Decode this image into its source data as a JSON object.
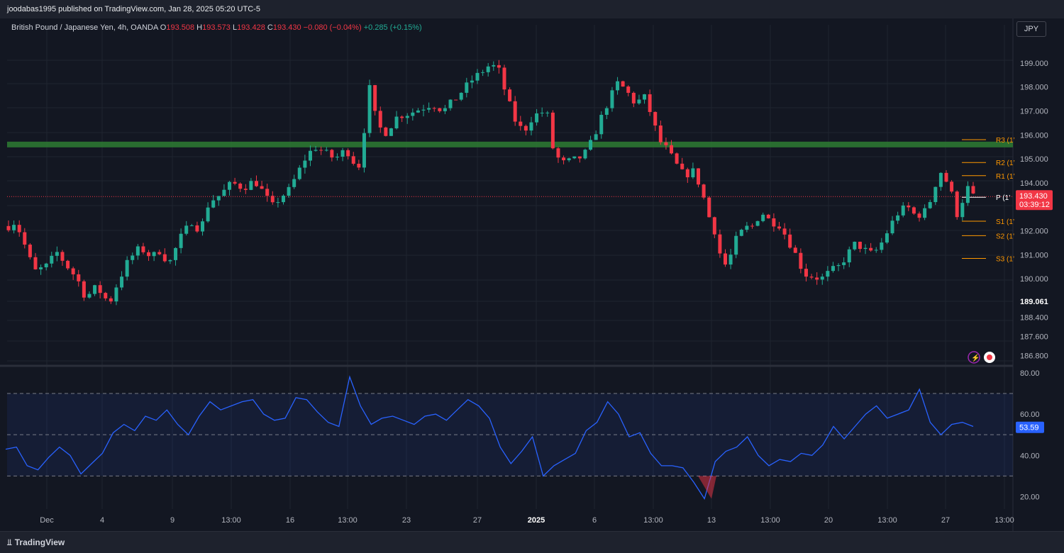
{
  "header": {
    "publisher_line": "joodabas1995 published on TradingView.com, Jan 28, 2025 05:20 UTC-5"
  },
  "legend": {
    "symbol": "British Pound / Japanese Yen, 4h, OANDA",
    "open_label": "O",
    "open": "193.508",
    "high_label": "H",
    "high": "193.573",
    "low_label": "L",
    "low": "193.428",
    "close_label": "C",
    "close": "193.430",
    "change": "−0.080 (−0.04%)",
    "extra_change": "+0.285 (+0.15%)"
  },
  "currency_button": "JPY",
  "footer": {
    "brand": "TradingView",
    "brand_icon": "tradingview-logo"
  },
  "colors": {
    "up": "#22ab94",
    "down": "#f23645",
    "rsi": "#2962ff",
    "pivot": "#ff9800",
    "zone": "#2e7d32"
  },
  "chart_data": [
    {
      "type": "candlestick",
      "title": "British Pound / Japanese Yen, 4h, OANDA",
      "ylim": [
        186.4,
        200.0
      ],
      "y_ticks": [
        "199.000",
        "198.000",
        "197.000",
        "196.000",
        "195.000",
        "194.000",
        "192.000",
        "191.000",
        "190.000",
        "188.400",
        "187.600",
        "186.800"
      ],
      "y_marked": "189.061",
      "x_ticks": [
        "Dec",
        "4",
        "9",
        "13:00",
        "16",
        "13:00",
        "23",
        "27",
        "2025",
        "6",
        "13:00",
        "13",
        "13:00",
        "20",
        "13:00",
        "27",
        "13:00"
      ],
      "last_price": "193.430",
      "countdown": "03:39:12",
      "horizontal_zone": {
        "price": 195.6
      },
      "pivots": [
        {
          "label": "R3 (1’",
          "value": 195.8
        },
        {
          "label": "R2 (1’",
          "value": 194.85
        },
        {
          "label": "R1 (1’",
          "value": 194.3
        },
        {
          "label": "P (1’",
          "value": 193.4
        },
        {
          "label": "S1 (1’",
          "value": 192.4
        },
        {
          "label": "S2 (1’",
          "value": 191.8
        },
        {
          "label": "S3 (1’",
          "value": 190.85
        }
      ],
      "close_path": [
        [
          0,
          192.2
        ],
        [
          5,
          192.4
        ],
        [
          12,
          191.3
        ],
        [
          18,
          190.3
        ],
        [
          26,
          190.5
        ],
        [
          34,
          191.1
        ],
        [
          40,
          190.6
        ],
        [
          48,
          190.0
        ],
        [
          54,
          189.2
        ],
        [
          60,
          189.6
        ],
        [
          66,
          189.4
        ],
        [
          70,
          188.9
        ],
        [
          76,
          189.8
        ],
        [
          84,
          190.8
        ],
        [
          92,
          191.3
        ],
        [
          100,
          190.9
        ],
        [
          106,
          191.2
        ],
        [
          112,
          190.6
        ],
        [
          120,
          191.7
        ],
        [
          128,
          192.4
        ],
        [
          134,
          192.0
        ],
        [
          140,
          193.2
        ],
        [
          148,
          193.5
        ],
        [
          156,
          194.0
        ],
        [
          164,
          193.8
        ],
        [
          172,
          194.1
        ],
        [
          178,
          193.6
        ],
        [
          184,
          193.0
        ],
        [
          190,
          193.4
        ],
        [
          196,
          193.7
        ],
        [
          202,
          194.4
        ],
        [
          208,
          195.1
        ],
        [
          214,
          195.5
        ],
        [
          220,
          195.3
        ],
        [
          228,
          195.0
        ],
        [
          236,
          195.4
        ],
        [
          244,
          194.6
        ],
        [
          248,
          195.3
        ],
        [
          250,
          198.9
        ],
        [
          254,
          197.2
        ],
        [
          258,
          196.5
        ],
        [
          262,
          196.0
        ],
        [
          266,
          196.3
        ],
        [
          272,
          196.8
        ],
        [
          280,
          196.9
        ],
        [
          288,
          197.1
        ],
        [
          296,
          197.3
        ],
        [
          304,
          197.0
        ],
        [
          312,
          197.5
        ],
        [
          318,
          197.9
        ],
        [
          324,
          198.3
        ],
        [
          330,
          198.6
        ],
        [
          336,
          198.9
        ],
        [
          342,
          198.8
        ],
        [
          348,
          197.6
        ],
        [
          354,
          196.6
        ],
        [
          360,
          196.1
        ],
        [
          364,
          196.6
        ],
        [
          370,
          196.9
        ],
        [
          376,
          197.0
        ],
        [
          380,
          195.5
        ],
        [
          386,
          194.8
        ],
        [
          392,
          194.9
        ],
        [
          398,
          195.0
        ],
        [
          404,
          195.3
        ],
        [
          408,
          195.8
        ],
        [
          412,
          196.4
        ],
        [
          416,
          197.0
        ],
        [
          420,
          197.5
        ],
        [
          426,
          198.2
        ],
        [
          432,
          197.8
        ],
        [
          438,
          197.3
        ],
        [
          444,
          197.6
        ],
        [
          450,
          196.7
        ],
        [
          454,
          195.8
        ],
        [
          460,
          195.4
        ],
        [
          466,
          194.8
        ],
        [
          472,
          194.3
        ],
        [
          478,
          194.5
        ],
        [
          484,
          193.8
        ],
        [
          488,
          192.8
        ],
        [
          494,
          191.9
        ],
        [
          498,
          190.8
        ],
        [
          502,
          190.5
        ],
        [
          508,
          191.6
        ],
        [
          514,
          192.1
        ],
        [
          520,
          192.2
        ],
        [
          526,
          192.8
        ],
        [
          532,
          192.4
        ],
        [
          538,
          192.3
        ],
        [
          544,
          191.7
        ],
        [
          550,
          191.0
        ],
        [
          556,
          190.2
        ],
        [
          562,
          190.1
        ],
        [
          568,
          190.0
        ],
        [
          574,
          190.3
        ],
        [
          580,
          190.5
        ],
        [
          586,
          191.0
        ],
        [
          592,
          191.5
        ],
        [
          598,
          191.2
        ],
        [
          604,
          191.0
        ],
        [
          610,
          191.5
        ],
        [
          616,
          192.2
        ],
        [
          622,
          192.8
        ],
        [
          628,
          193.0
        ],
        [
          634,
          192.6
        ],
        [
          640,
          192.8
        ],
        [
          646,
          193.5
        ],
        [
          650,
          194.6
        ],
        [
          654,
          194.2
        ],
        [
          658,
          193.8
        ],
        [
          662,
          192.6
        ],
        [
          666,
          193.2
        ],
        [
          670,
          193.8
        ],
        [
          674,
          193.43
        ]
      ]
    },
    {
      "type": "line",
      "title": "RSI",
      "ylim": [
        14,
        82
      ],
      "y_ticks": [
        "80.00",
        "60.00",
        "40.00",
        "20.00"
      ],
      "levels": [
        70,
        50,
        30
      ],
      "current_value": "53.59",
      "values": [
        43,
        44,
        35,
        33,
        39,
        44,
        40,
        31,
        36,
        41,
        51,
        55,
        52,
        59,
        57,
        62,
        55,
        50,
        59,
        66,
        62,
        64,
        66,
        67,
        60,
        57,
        58,
        68,
        67,
        61,
        56,
        54,
        78,
        64,
        55,
        58,
        59,
        57,
        55,
        59,
        60,
        57,
        62,
        67,
        64,
        58,
        44,
        36,
        42,
        49,
        30,
        35,
        38,
        41,
        52,
        56,
        66,
        60,
        49,
        51,
        41,
        35,
        35,
        34,
        27,
        19,
        37,
        42,
        44,
        49,
        40,
        35,
        38,
        37,
        41,
        40,
        45,
        54,
        48,
        54,
        60,
        64,
        58,
        60,
        62,
        72,
        56,
        50,
        55,
        56,
        54
      ]
    }
  ]
}
